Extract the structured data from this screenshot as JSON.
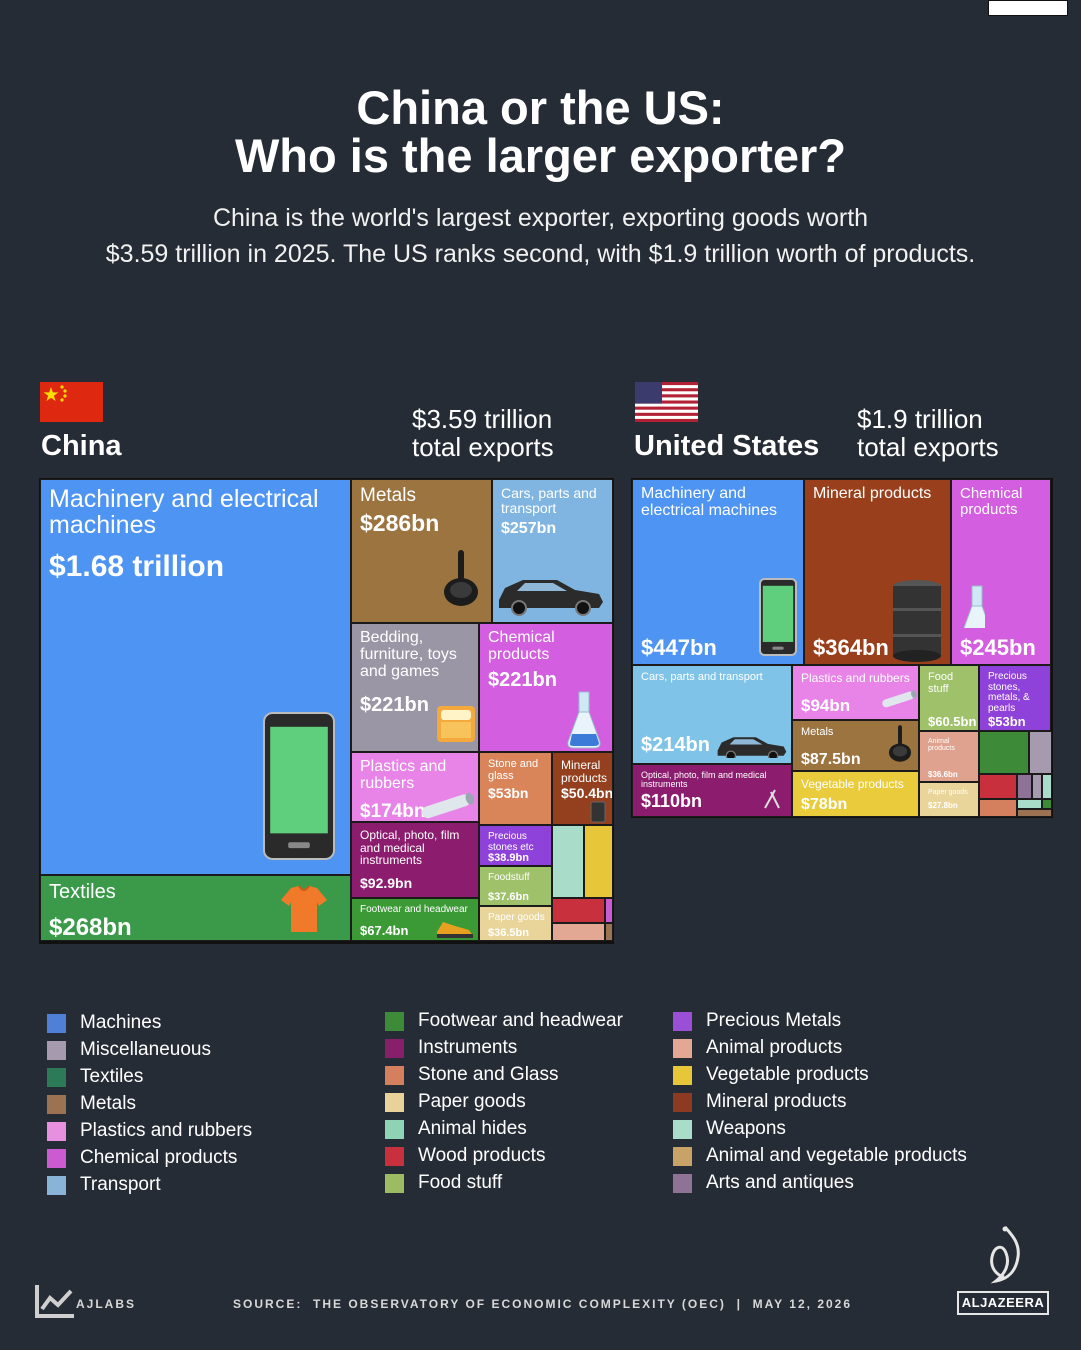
{
  "title_line1": "China or the US:",
  "title_line2": "Who is the larger exporter?",
  "subtitle_line1": "China is the world's largest exporter, exporting goods worth",
  "subtitle_line2": "$3.59 trillion in 2025. The US ranks second, with $1.9 trillion worth of products.",
  "china": {
    "name": "China",
    "total_line1": "$3.59 trillion",
    "total_line2": "total exports"
  },
  "us": {
    "name": "United States",
    "total_line1": "$1.9 trillion",
    "total_line2": "total exports"
  },
  "chart_data": [
    {
      "type": "treemap",
      "country": "China",
      "total": "$3.59 trillion",
      "tiles": [
        {
          "label": "Machinery and electrical machines",
          "value_text": "$1.68 trillion",
          "value_bn": 1680,
          "category": "Machines",
          "color": "#4e94f3"
        },
        {
          "label": "Textiles",
          "value_text": "$268bn",
          "value_bn": 268,
          "category": "Textiles",
          "color": "#3b9a4a"
        },
        {
          "label": "Metals",
          "value_text": "$286bn",
          "value_bn": 286,
          "category": "Metals",
          "color": "#9c7440"
        },
        {
          "label": "Cars, parts and transport",
          "value_text": "$257bn",
          "value_bn": 257,
          "category": "Transport",
          "color": "#7fb5e0"
        },
        {
          "label": "Bedding, furniture, toys and games",
          "value_text": "$221bn",
          "value_bn": 221,
          "category": "Miscellaneuous",
          "color": "#9b96a6"
        },
        {
          "label": "Chemical products",
          "value_text": "$221bn",
          "value_bn": 221,
          "category": "Chemical products",
          "color": "#d35ee0"
        },
        {
          "label": "Plastics and rubbers",
          "value_text": "$174bn",
          "value_bn": 174,
          "category": "Plastics and rubbers",
          "color": "#e884e8"
        },
        {
          "label": "Stone and glass",
          "value_text": "$53bn",
          "value_bn": 53,
          "category": "Stone and Glass",
          "color": "#d98459"
        },
        {
          "label": "Mineral products",
          "value_text": "$50.4bn",
          "value_bn": 50.4,
          "category": "Mineral products",
          "color": "#94401e"
        },
        {
          "label": "Optical, photo, film and medical instruments",
          "value_text": "$92.9bn",
          "value_bn": 92.9,
          "category": "Instruments",
          "color": "#8c1d6e"
        },
        {
          "label": "Precious stones etc",
          "value_text": "$38.9bn",
          "value_bn": 38.9,
          "category": "Precious Metals",
          "color": "#8f42d9"
        },
        {
          "label": "Footwear and headwear",
          "value_text": "$67.4bn",
          "value_bn": 67.4,
          "category": "Footwear and headwear",
          "color": "#3b9a35"
        },
        {
          "label": "Foodstuff",
          "value_text": "$37.6bn",
          "value_bn": 37.6,
          "category": "Food stuff",
          "color": "#9ec16a"
        },
        {
          "label": "Paper goods",
          "value_text": "$36.5bn",
          "value_bn": 36.5,
          "category": "Paper goods",
          "color": "#e9d49a"
        }
      ]
    },
    {
      "type": "treemap",
      "country": "United States",
      "total": "$1.9 trillion",
      "tiles": [
        {
          "label": "Machinery and electrical machines",
          "value_text": "$447bn",
          "value_bn": 447,
          "category": "Machines",
          "color": "#4e94f3"
        },
        {
          "label": "Mineral products",
          "value_text": "$364bn",
          "value_bn": 364,
          "category": "Mineral products",
          "color": "#9a3f1b"
        },
        {
          "label": "Chemical products",
          "value_text": "$245bn",
          "value_bn": 245,
          "category": "Chemical products",
          "color": "#d35ee0"
        },
        {
          "label": "Cars, parts and transport",
          "value_text": "$214bn",
          "value_bn": 214,
          "category": "Transport",
          "color": "#7fc4e8"
        },
        {
          "label": "Plastics and rubbers",
          "value_text": "$94bn",
          "value_bn": 94,
          "category": "Plastics and rubbers",
          "color": "#e884e8"
        },
        {
          "label": "Food stuff",
          "value_text": "$60.5bn",
          "value_bn": 60.5,
          "category": "Food stuff",
          "color": "#9ec16a"
        },
        {
          "label": "Precious stones, metals, & pearls",
          "value_text": "$53bn",
          "value_bn": 53,
          "category": "Precious Metals",
          "color": "#8f42d9"
        },
        {
          "label": "Metals",
          "value_text": "$87.5bn",
          "value_bn": 87.5,
          "category": "Metals",
          "color": "#9c7440"
        },
        {
          "label": "Optical, photo, film and medical instruments",
          "value_text": "$110bn",
          "value_bn": 110,
          "category": "Instruments",
          "color": "#8c1d6e"
        },
        {
          "label": "Vegetable products",
          "value_text": "$78bn",
          "value_bn": 78,
          "category": "Vegetable products",
          "color": "#eacb3b"
        },
        {
          "label": "Animal products",
          "value_text": "$36.6bn",
          "value_bn": 36.6,
          "category": "Animal products",
          "color": "#dfa28e"
        },
        {
          "label": "Paper goods",
          "value_text": "$27.8bn",
          "value_bn": 27.8,
          "category": "Paper goods",
          "color": "#e9d49a"
        }
      ]
    }
  ],
  "legend": [
    {
      "label": "Machines",
      "color": "#4f7fd6"
    },
    {
      "label": "Miscellaneuous",
      "color": "#a69aaf"
    },
    {
      "label": "Textiles",
      "color": "#2d7a59"
    },
    {
      "label": "Metals",
      "color": "#9c7352"
    },
    {
      "label": "Plastics and rubbers",
      "color": "#e890e0"
    },
    {
      "label": "Chemical products",
      "color": "#cc5ad0"
    },
    {
      "label": "Transport",
      "color": "#8ab3d8"
    },
    {
      "label": "Footwear and headwear",
      "color": "#3d8a38"
    },
    {
      "label": "Instruments",
      "color": "#871f6a"
    },
    {
      "label": "Stone and Glass",
      "color": "#d4805e"
    },
    {
      "label": "Paper goods",
      "color": "#e8d29a"
    },
    {
      "label": "Animal hides",
      "color": "#8fd3b5"
    },
    {
      "label": "Wood products",
      "color": "#c8303d"
    },
    {
      "label": "Food stuff",
      "color": "#9dbb62"
    },
    {
      "label": "Precious Metals",
      "color": "#9a4fd6"
    },
    {
      "label": "Animal products",
      "color": "#e2a894"
    },
    {
      "label": "Vegetable products",
      "color": "#e8c63a"
    },
    {
      "label": "Mineral products",
      "color": "#8c3a22"
    },
    {
      "label": "Weapons",
      "color": "#a9dcc9"
    },
    {
      "label": "Animal and vegetable products",
      "color": "#c9a268"
    },
    {
      "label": "Arts and antiques",
      "color": "#8f7397"
    }
  ],
  "footer": {
    "brand": "AJLABS",
    "source": "SOURCE:  THE OBSERVATORY OF ECONOMIC COMPLEXITY (OEC)  |  MAY 12, 2026",
    "logo_text": "ALJAZEERA"
  }
}
